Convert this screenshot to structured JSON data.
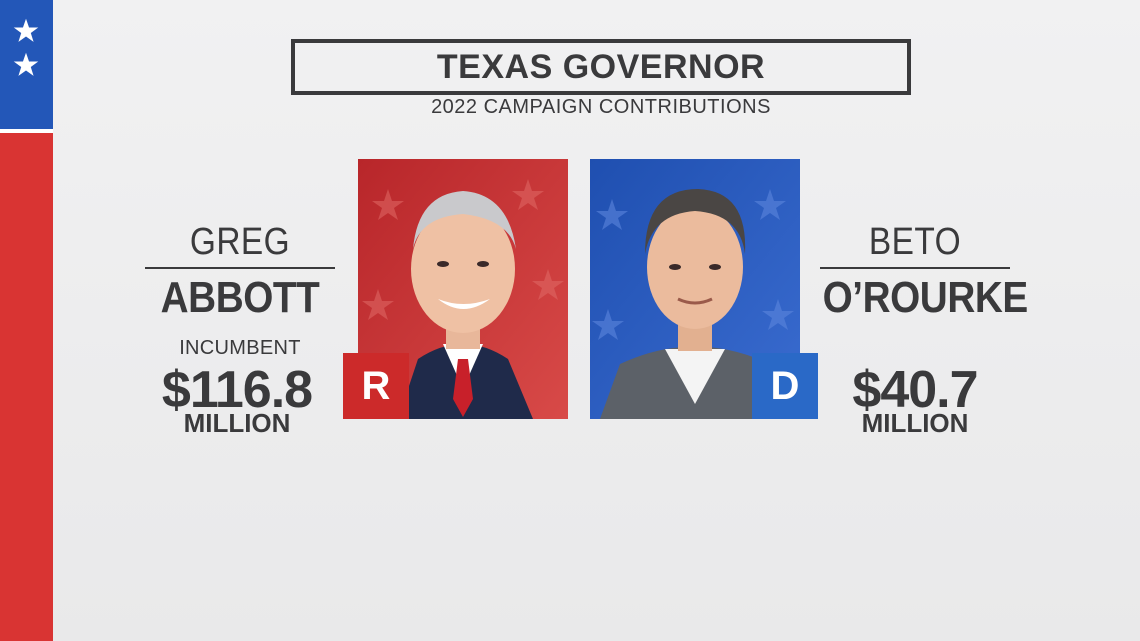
{
  "header": {
    "title": "TEXAS GOVERNOR",
    "subtitle": "2022 CAMPAIGN CONTRIBUTIONS"
  },
  "candidates": [
    {
      "first_name": "GREG",
      "last_name": "ABBOTT",
      "status": "INCUMBENT",
      "amount": "$116.8",
      "unit": "MILLION",
      "party_letter": "R",
      "party_color": "#cc2a2a",
      "photo_bg": "#c03030",
      "photo_icon": "candidate-portrait-icon"
    },
    {
      "first_name": "BETO",
      "last_name": "O’ROURKE",
      "status": "",
      "amount": "$40.7",
      "unit": "MILLION",
      "party_letter": "D",
      "party_color": "#2a69c7",
      "photo_bg": "#2a55b0",
      "photo_icon": "candidate-portrait-icon"
    }
  ],
  "colors": {
    "flag_blue": "#2357b8",
    "flag_red": "#d93433",
    "text": "#3a3a3c",
    "background": "#efeff0"
  }
}
